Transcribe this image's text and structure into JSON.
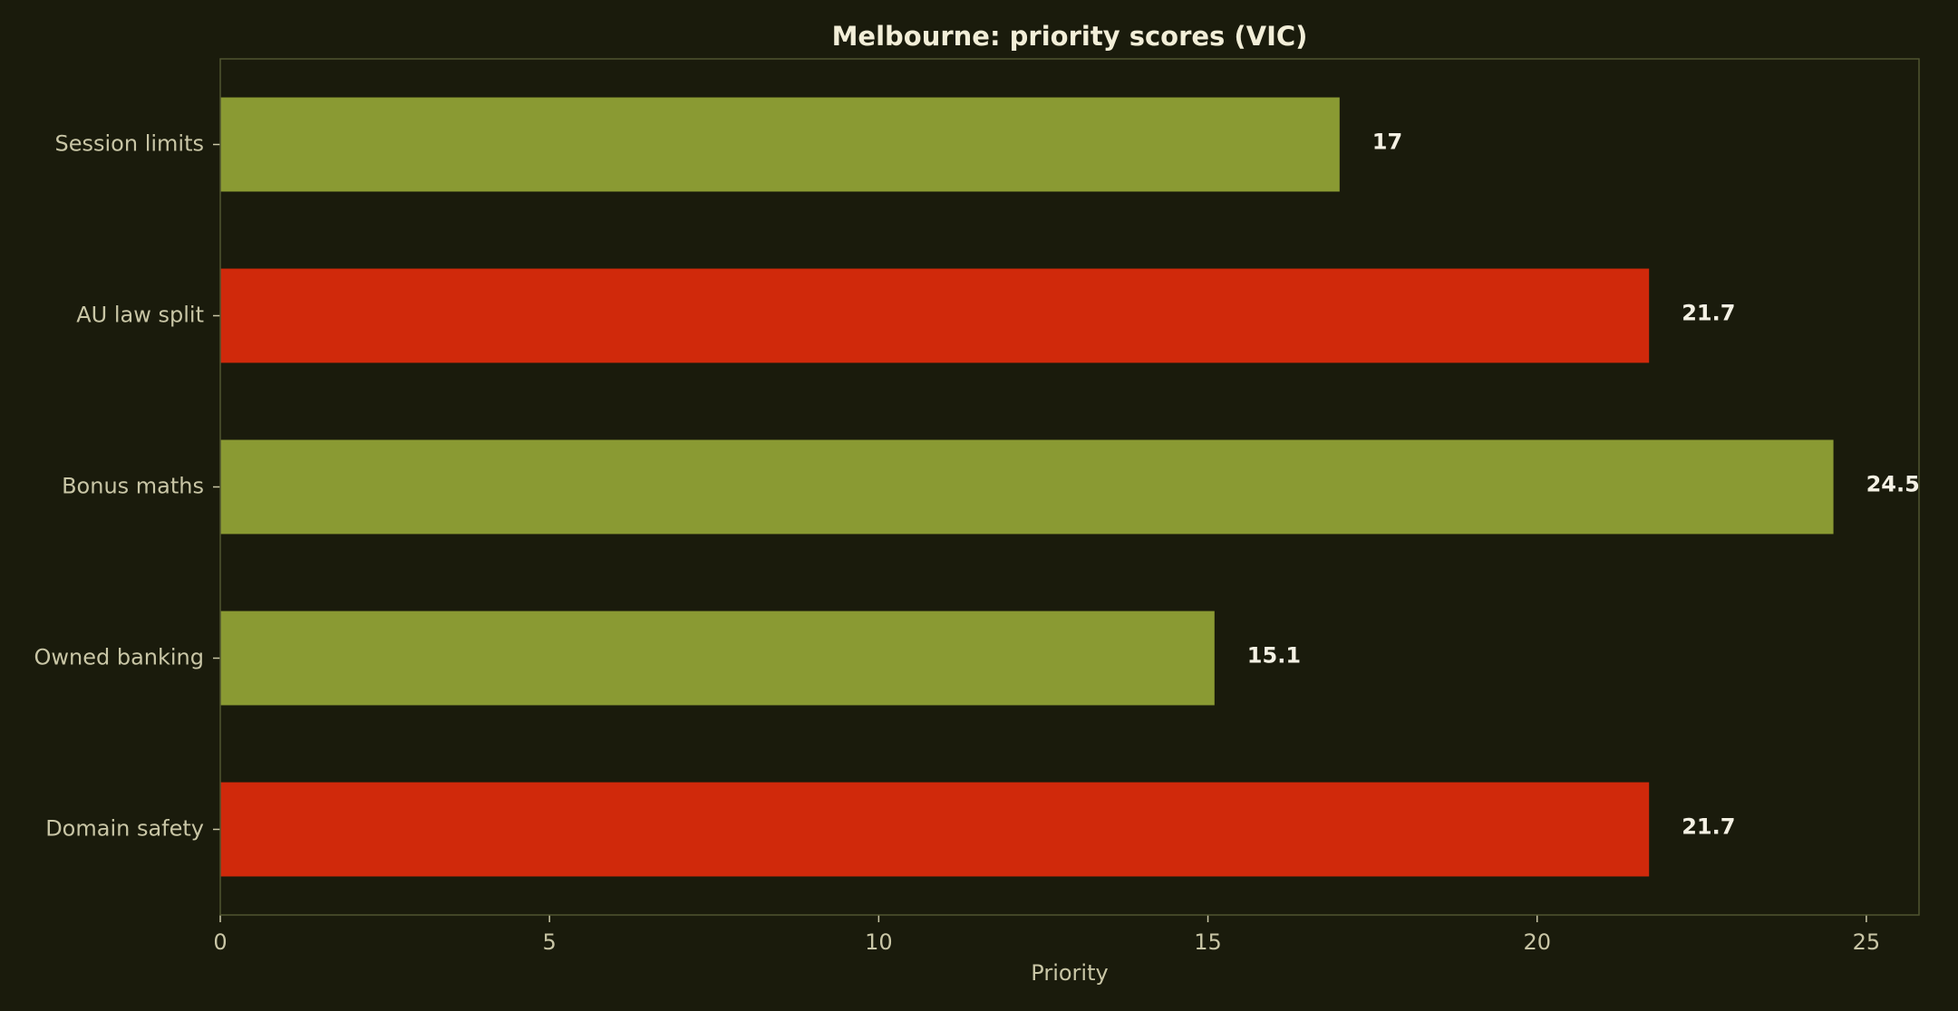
{
  "colors": {
    "background": "#1a1b0c",
    "highlight": "#d0290b",
    "normal": "#8a9a33"
  },
  "chart_data": {
    "type": "bar",
    "orientation": "horizontal",
    "title": "Melbourne: priority scores (VIC)",
    "xlabel": "Priority",
    "ylabel": "",
    "xlim": [
      0,
      25.8
    ],
    "xticks": [
      0,
      5,
      10,
      15,
      20,
      25
    ],
    "grid": false,
    "categories": [
      "Session limits",
      "AU law split",
      "Bonus maths",
      "Owned banking",
      "Domain safety"
    ],
    "values": [
      17,
      21.7,
      24.5,
      15.1,
      21.7
    ],
    "value_labels": [
      "17",
      "21.7",
      "24.5",
      "15.1",
      "21.7"
    ],
    "highlighted": [
      false,
      true,
      false,
      false,
      true
    ]
  }
}
